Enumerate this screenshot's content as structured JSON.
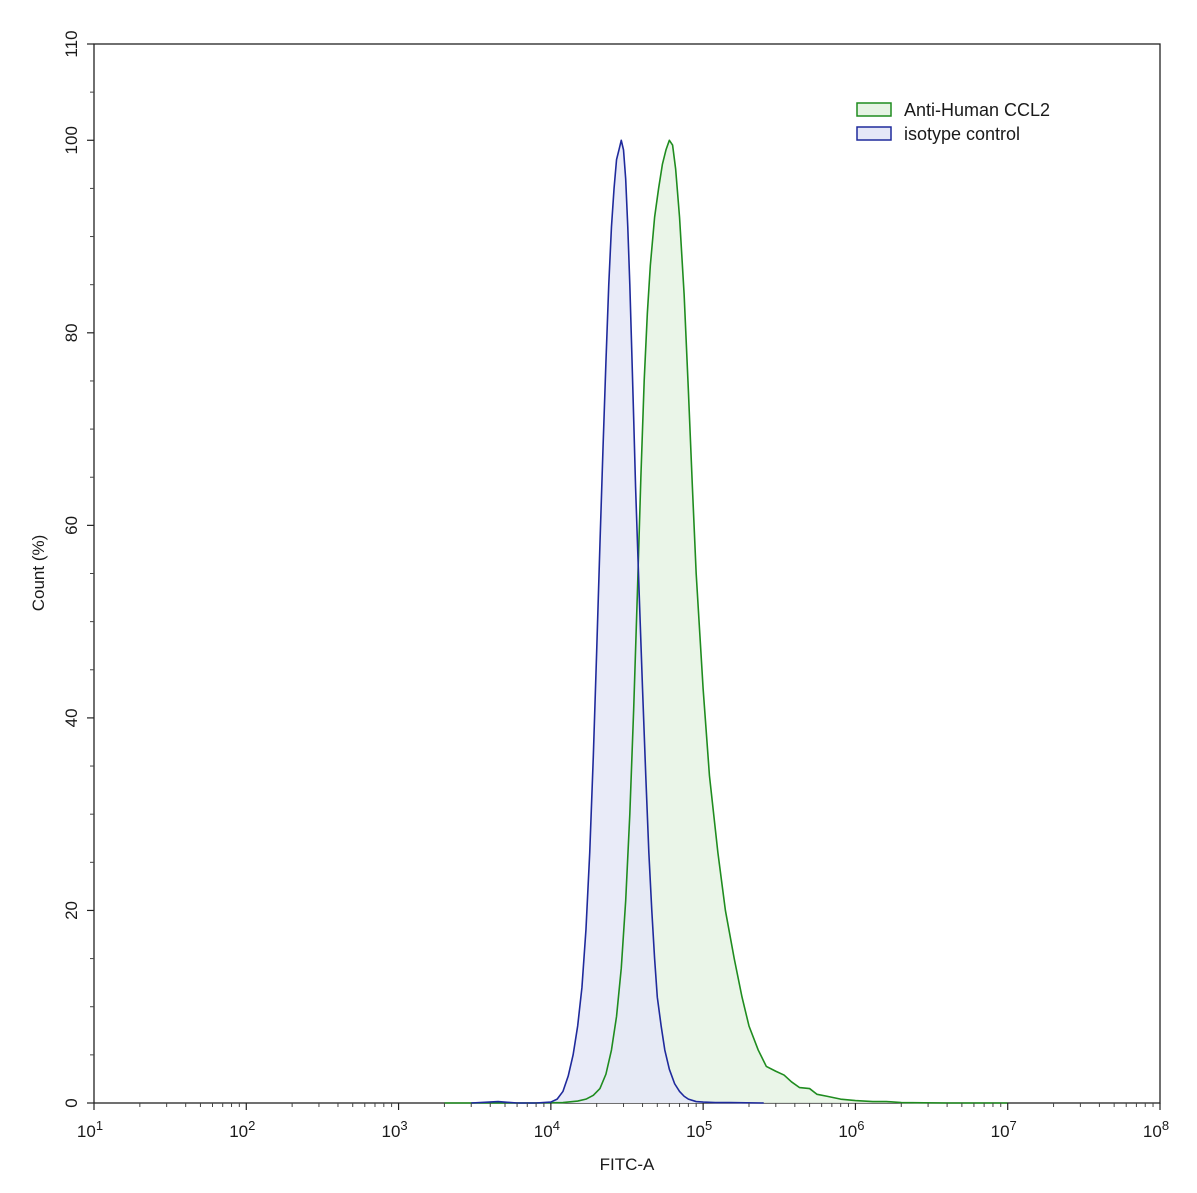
{
  "chart_data": {
    "type": "area",
    "xlabel": "FITC-A",
    "ylabel": "Count  (%)",
    "xscale": "log",
    "xlim": [
      10,
      100000000
    ],
    "ylim": [
      0,
      110
    ],
    "x_ticks": [
      {
        "value": 10,
        "base": "10",
        "exp": "1"
      },
      {
        "value": 100,
        "base": "10",
        "exp": "2"
      },
      {
        "value": 1000,
        "base": "10",
        "exp": "3"
      },
      {
        "value": 10000,
        "base": "10",
        "exp": "4"
      },
      {
        "value": 100000,
        "base": "10",
        "exp": "5"
      },
      {
        "value": 1000000,
        "base": "10",
        "exp": "6"
      },
      {
        "value": 10000000,
        "base": "10",
        "exp": "7"
      },
      {
        "value": 100000000,
        "base": "10",
        "exp": "8"
      }
    ],
    "y_ticks": [
      0,
      20,
      40,
      60,
      80,
      100,
      110
    ],
    "grid": false,
    "legend_position": "top-right",
    "series": [
      {
        "name": "Anti-Human CCL2",
        "stroke": "#1f8c1f",
        "fill": "#e6f3e4",
        "x": [
          2000,
          8000,
          12000,
          15000,
          17000,
          19000,
          21000,
          23000,
          25000,
          27000,
          29000,
          31000,
          33000,
          35000,
          37000,
          39000,
          41000,
          43000,
          45000,
          48000,
          51000,
          54000,
          57000,
          60000,
          63000,
          66000,
          70000,
          75000,
          80000,
          85000,
          90000,
          100000,
          110000,
          125000,
          140000,
          160000,
          180000,
          200000,
          230000,
          260000,
          300000,
          340000,
          380000,
          430000,
          500000,
          560000,
          650000,
          800000,
          1000000,
          1300000,
          1600000,
          2000000,
          4000000,
          10000000
        ],
        "y": [
          0,
          0,
          0.05,
          0.2,
          0.4,
          0.8,
          1.5,
          3,
          5.5,
          9,
          14,
          21,
          30,
          41,
          53,
          65,
          75,
          82,
          87,
          92,
          95,
          97.5,
          99,
          100,
          99.5,
          97,
          92,
          84,
          74,
          64,
          55,
          43,
          34,
          26,
          20,
          15,
          11,
          8,
          5.5,
          3.8,
          3.3,
          2.9,
          2.2,
          1.6,
          1.5,
          0.9,
          0.7,
          0.4,
          0.25,
          0.15,
          0.15,
          0.05,
          0,
          0
        ]
      },
      {
        "name": "isotype control",
        "stroke": "#1f2a9c",
        "fill": "#e5e7f7",
        "x": [
          3000,
          4500,
          6000,
          8000,
          10000,
          11000,
          12000,
          13000,
          14000,
          15000,
          16000,
          17000,
          18000,
          19000,
          20000,
          21000,
          22000,
          23000,
          24000,
          25000,
          26000,
          27000,
          28000,
          29000,
          30000,
          31000,
          32000,
          33000,
          34000,
          35000,
          36000,
          38000,
          40000,
          42000,
          44000,
          46000,
          48000,
          50000,
          53000,
          56000,
          60000,
          65000,
          70000,
          75000,
          80000,
          90000,
          100000,
          120000,
          150000,
          250000
        ],
        "y": [
          0,
          0.15,
          0,
          0,
          0.1,
          0.4,
          1.2,
          2.8,
          5,
          8,
          12,
          18,
          26,
          36,
          47,
          58,
          68,
          77,
          85,
          91,
          95,
          98,
          99,
          100,
          99,
          96,
          91,
          85,
          78,
          71,
          64,
          53,
          43,
          34,
          26,
          20,
          15,
          11,
          8,
          5.5,
          3.5,
          2,
          1.2,
          0.7,
          0.4,
          0.15,
          0.1,
          0.05,
          0.05,
          0
        ]
      }
    ]
  }
}
